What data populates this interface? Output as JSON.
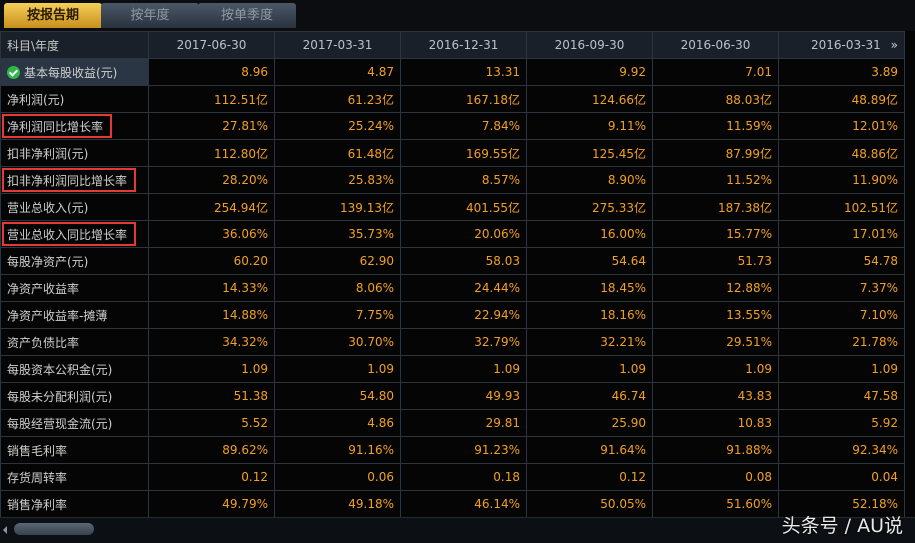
{
  "tabs": [
    "按报告期",
    "按年度",
    "按单季度"
  ],
  "active_tab": 0,
  "table": {
    "corner": "科目\\年度",
    "columns": [
      "2017-06-30",
      "2017-03-31",
      "2016-12-31",
      "2016-09-30",
      "2016-06-30",
      "2016-03-31"
    ],
    "more": "»",
    "rows": [
      {
        "label": "基本每股收益(元)",
        "cells": [
          "8.96",
          "4.87",
          "13.31",
          "9.92",
          "7.01",
          "3.89"
        ]
      },
      {
        "label": "净利润(元)",
        "cells": [
          "112.51亿",
          "61.23亿",
          "167.18亿",
          "124.66亿",
          "88.03亿",
          "48.89亿"
        ]
      },
      {
        "label": "净利润同比增长率",
        "cells": [
          "27.81%",
          "25.24%",
          "7.84%",
          "9.11%",
          "11.59%",
          "12.01%"
        ],
        "highlight": true
      },
      {
        "label": "扣非净利润(元)",
        "cells": [
          "112.80亿",
          "61.48亿",
          "169.55亿",
          "125.45亿",
          "87.99亿",
          "48.86亿"
        ]
      },
      {
        "label": "扣非净利润同比增长率",
        "cells": [
          "28.20%",
          "25.83%",
          "8.57%",
          "8.90%",
          "11.52%",
          "11.90%"
        ],
        "highlight": true
      },
      {
        "label": "营业总收入(元)",
        "cells": [
          "254.94亿",
          "139.13亿",
          "401.55亿",
          "275.33亿",
          "187.38亿",
          "102.51亿"
        ]
      },
      {
        "label": "营业总收入同比增长率",
        "cells": [
          "36.06%",
          "35.73%",
          "20.06%",
          "16.00%",
          "15.77%",
          "17.01%"
        ],
        "highlight": true
      },
      {
        "label": "每股净资产(元)",
        "cells": [
          "60.20",
          "62.90",
          "58.03",
          "54.64",
          "51.73",
          "54.78"
        ]
      },
      {
        "label": "净资产收益率",
        "cells": [
          "14.33%",
          "8.06%",
          "24.44%",
          "18.45%",
          "12.88%",
          "7.37%"
        ]
      },
      {
        "label": "净资产收益率-摊薄",
        "cells": [
          "14.88%",
          "7.75%",
          "22.94%",
          "18.16%",
          "13.55%",
          "7.10%"
        ]
      },
      {
        "label": "资产负债比率",
        "cells": [
          "34.32%",
          "30.70%",
          "32.79%",
          "32.21%",
          "29.51%",
          "21.78%"
        ]
      },
      {
        "label": "每股资本公积金(元)",
        "cells": [
          "1.09",
          "1.09",
          "1.09",
          "1.09",
          "1.09",
          "1.09"
        ]
      },
      {
        "label": "每股未分配利润(元)",
        "cells": [
          "51.38",
          "54.80",
          "49.93",
          "46.74",
          "43.83",
          "47.58"
        ]
      },
      {
        "label": "每股经营现金流(元)",
        "cells": [
          "5.52",
          "4.86",
          "29.81",
          "25.90",
          "10.83",
          "5.92"
        ]
      },
      {
        "label": "销售毛利率",
        "cells": [
          "89.62%",
          "91.16%",
          "91.23%",
          "91.64%",
          "91.88%",
          "92.34%"
        ]
      },
      {
        "label": "存货周转率",
        "cells": [
          "0.12",
          "0.06",
          "0.18",
          "0.12",
          "0.08",
          "0.04"
        ]
      },
      {
        "label": "销售净利率",
        "cells": [
          "49.79%",
          "49.18%",
          "46.14%",
          "50.05%",
          "51.60%",
          "52.18%"
        ]
      }
    ]
  },
  "watermark": "头条号 / AU说"
}
